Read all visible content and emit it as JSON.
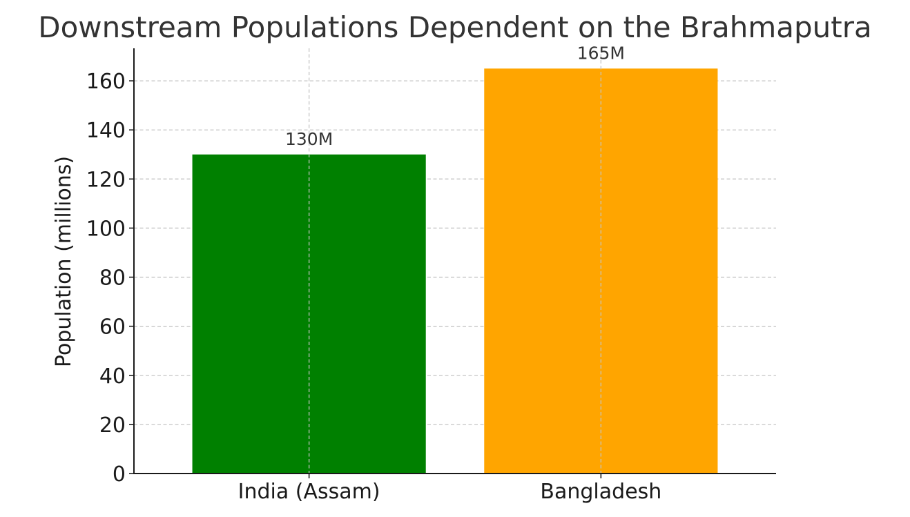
{
  "chart_data": {
    "type": "bar",
    "title": "Downstream Populations Dependent on the Brahmaputra",
    "xlabel": "",
    "ylabel": "Population (millions)",
    "categories": [
      "India (Assam)",
      "Bangladesh"
    ],
    "values": [
      130,
      165
    ],
    "data_labels": [
      "130M",
      "165M"
    ],
    "colors": [
      "#008000",
      "#FFA500"
    ],
    "ylim": [
      0,
      173.25
    ],
    "yticks": [
      0,
      20,
      40,
      60,
      80,
      100,
      120,
      140,
      160
    ],
    "grid": true
  }
}
